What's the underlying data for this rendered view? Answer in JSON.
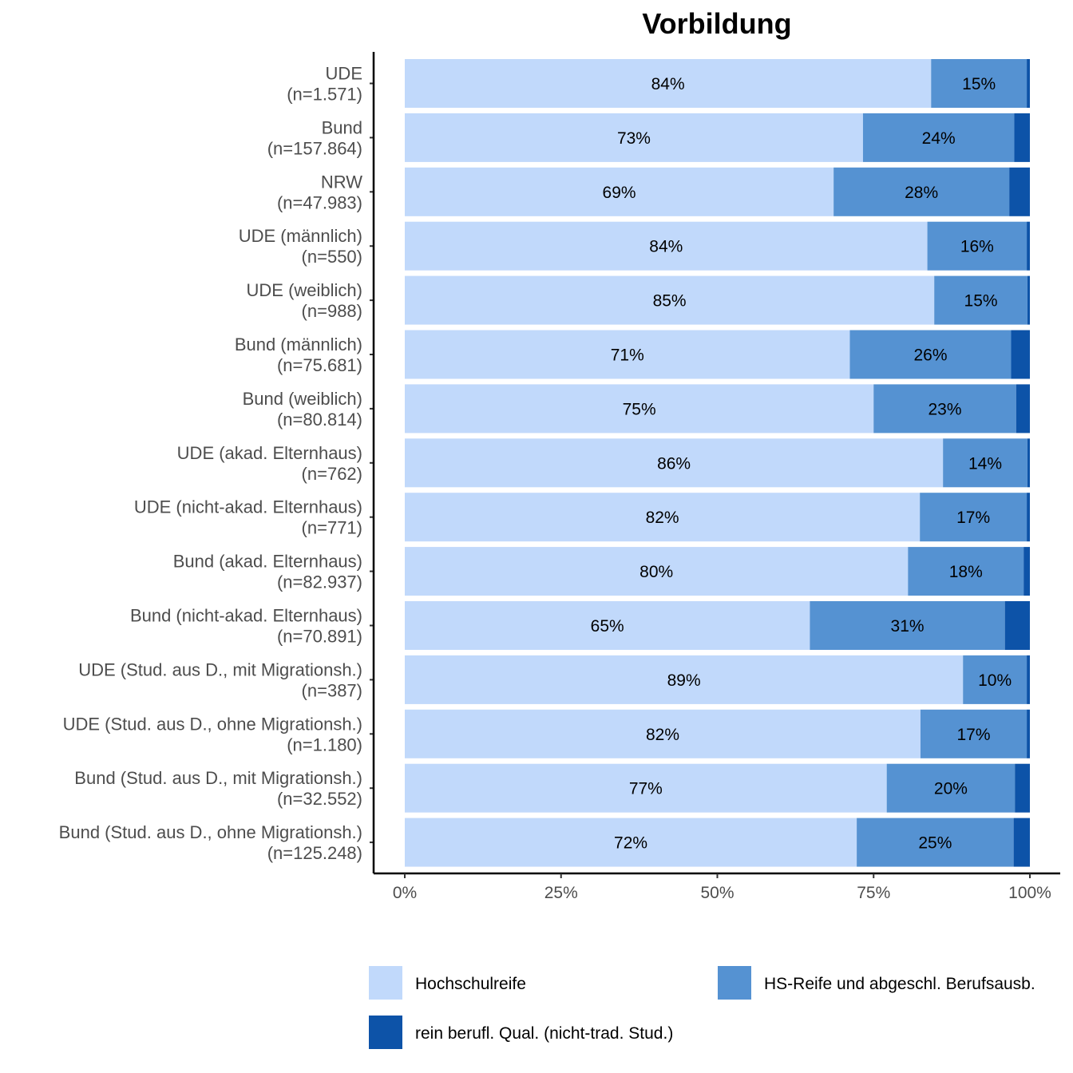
{
  "chart_data": {
    "type": "bar",
    "orientation": "horizontal",
    "stacked": true,
    "percent": true,
    "title": "Vorbildung",
    "xlabel": "",
    "ylabel": "",
    "xlim": [
      0,
      100
    ],
    "x_ticks": [
      "0%",
      "25%",
      "50%",
      "75%",
      "100%"
    ],
    "grid": false,
    "legend_position": "bottom",
    "categories": [
      [
        "UDE",
        "(n=1.571)"
      ],
      [
        "Bund",
        "(n=157.864)"
      ],
      [
        "NRW",
        "(n=47.983)"
      ],
      [
        "UDE (männlich)",
        "(n=550)"
      ],
      [
        "UDE (weiblich)",
        "(n=988)"
      ],
      [
        "Bund (männlich)",
        "(n=75.681)"
      ],
      [
        "Bund (weiblich)",
        "(n=80.814)"
      ],
      [
        "UDE (akad. Elternhaus)",
        "(n=762)"
      ],
      [
        "UDE (nicht-akad. Elternhaus)",
        "(n=771)"
      ],
      [
        "Bund (akad. Elternhaus)",
        "(n=82.937)"
      ],
      [
        "Bund (nicht-akad. Elternhaus)",
        "(n=70.891)"
      ],
      [
        "UDE (Stud. aus D., mit Migrationsh.)",
        "(n=387)"
      ],
      [
        "UDE (Stud. aus D., ohne Migrationsh.)",
        "(n=1.180)"
      ],
      [
        "Bund (Stud. aus D., mit Migrationsh.)",
        "(n=32.552)"
      ],
      [
        "Bund (Stud. aus D., ohne Migrationsh.)",
        "(n=125.248)"
      ]
    ],
    "series": [
      {
        "name": "Hochschulreife",
        "color": "#c1d9fb",
        "values": [
          84.2,
          73.3,
          68.6,
          83.6,
          84.7,
          71.2,
          75.0,
          86.1,
          82.4,
          80.5,
          64.8,
          89.3,
          82.5,
          77.1,
          72.3
        ],
        "labels": [
          "84%",
          "73%",
          "69%",
          "84%",
          "85%",
          "71%",
          "75%",
          "86%",
          "82%",
          "80%",
          "65%",
          "89%",
          "82%",
          "77%",
          "72%"
        ]
      },
      {
        "name": "HS-Reife und abgeschl. Berufsausb.",
        "color": "#5592d2",
        "values": [
          15.3,
          24.2,
          28.1,
          15.9,
          14.9,
          25.8,
          22.8,
          13.5,
          17.1,
          18.5,
          31.2,
          10.2,
          17.0,
          20.5,
          25.1
        ],
        "labels": [
          "15%",
          "24%",
          "28%",
          "16%",
          "15%",
          "26%",
          "23%",
          "14%",
          "17%",
          "18%",
          "31%",
          "10%",
          "17%",
          "20%",
          "25%"
        ]
      },
      {
        "name": "rein berufl. Qual. (nicht-trad. Stud.)",
        "color": "#0d53a8",
        "values": [
          0.5,
          2.5,
          3.3,
          0.5,
          0.4,
          3.0,
          2.2,
          0.4,
          0.5,
          1.0,
          4.0,
          0.5,
          0.5,
          2.4,
          2.6
        ],
        "labels": [
          "",
          "",
          "",
          "",
          "",
          "",
          "",
          "",
          "",
          "",
          "",
          "",
          "",
          "",
          ""
        ]
      }
    ]
  }
}
